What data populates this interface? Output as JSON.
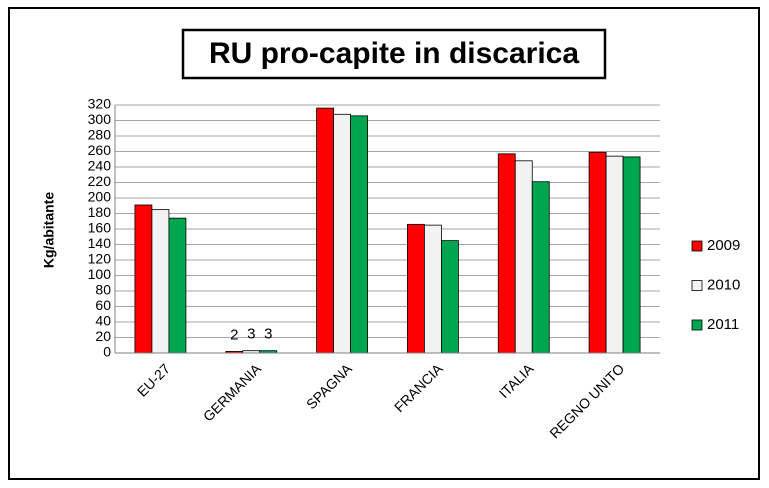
{
  "chart_data": {
    "type": "bar",
    "title": "RU pro-capite in discarica",
    "y_label": "Kg/abitante",
    "categories": [
      "EU-27",
      "GERMANIA",
      "SPAGNA",
      "FRANCIA",
      "ITALIA",
      "REGNO UNITO"
    ],
    "series": [
      {
        "name": "2009",
        "color": "#ff0000",
        "values": [
          191,
          2,
          316,
          166,
          257,
          259
        ]
      },
      {
        "name": "2010",
        "color": "#f2f2f2",
        "values": [
          185,
          3,
          308,
          165,
          248,
          254
        ]
      },
      {
        "name": "2011",
        "color": "#00a550",
        "values": [
          174,
          3,
          306,
          145,
          221,
          253
        ]
      }
    ],
    "data_label_indices": [
      1
    ],
    "ylim": [
      0,
      320
    ],
    "yticks": [
      0,
      20,
      40,
      60,
      80,
      100,
      120,
      140,
      160,
      180,
      200,
      220,
      240,
      260,
      280,
      300,
      320
    ],
    "grid": true,
    "legend": "right"
  }
}
